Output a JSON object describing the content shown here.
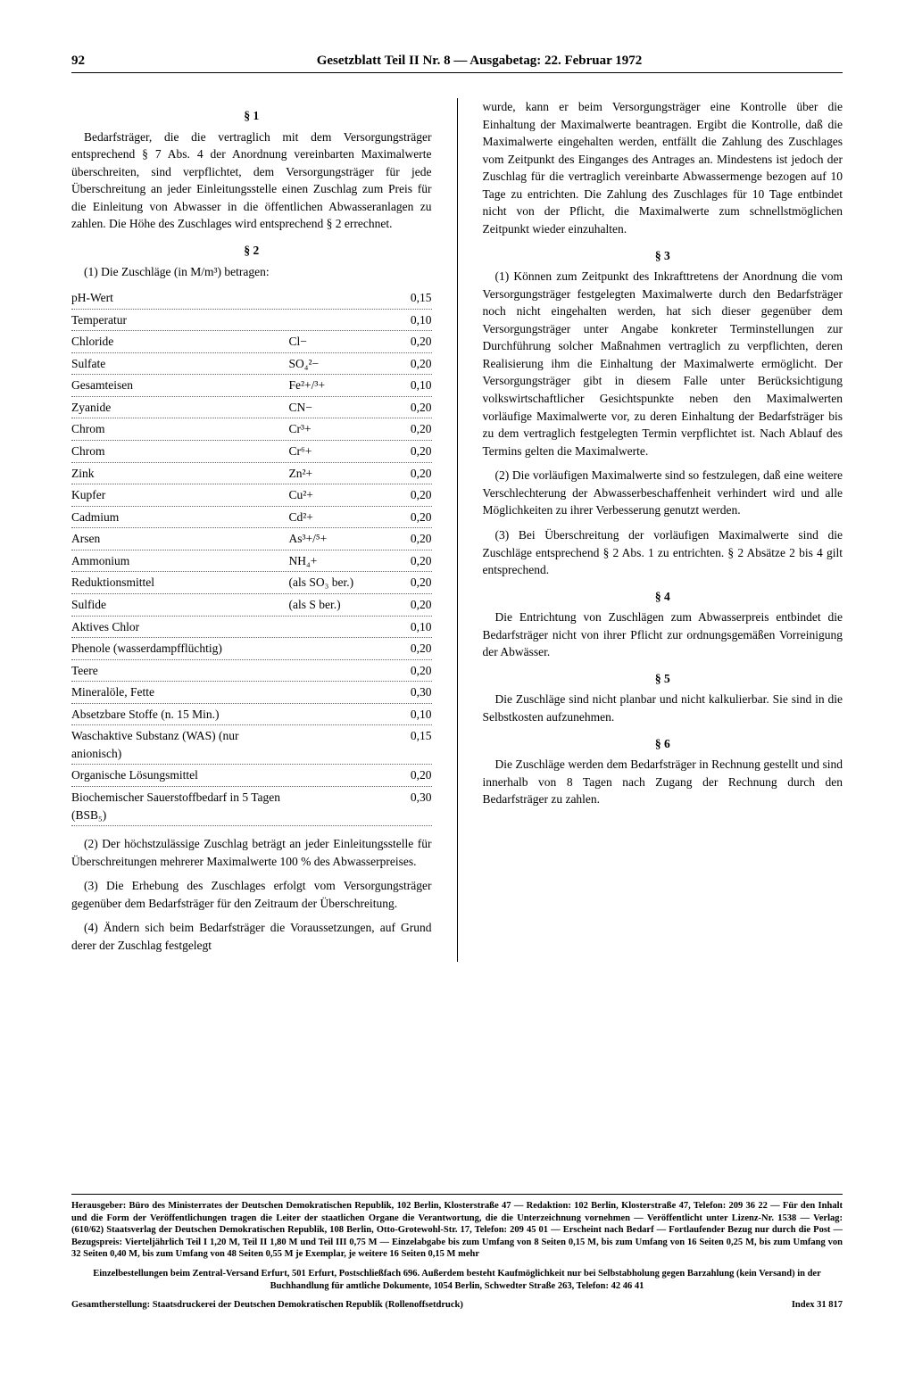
{
  "page_number": "92",
  "header": "Gesetzblatt Teil II Nr. 8 — Ausgabetag: 22. Februar 1972",
  "left": {
    "s1_heading": "§ 1",
    "s1_text": "Bedarfsträger, die die vertraglich mit dem Versorgungsträger entsprechend § 7 Abs. 4 der Anordnung vereinbarten Maximalwerte überschreiten, sind verpflichtet, dem Versorgungsträger für jede Überschreitung an jeder Einleitungsstelle einen Zuschlag zum Preis für die Einleitung von Abwasser in die öffentlichen Abwasseranlagen zu zahlen. Die Höhe des Zuschlages wird entsprechend § 2 errechnet.",
    "s2_heading": "§ 2",
    "s2_intro": "(1) Die Zuschläge (in M/m³) betragen:",
    "table": [
      {
        "name": "pH-Wert",
        "formula": "",
        "value": "0,15"
      },
      {
        "name": "Temperatur",
        "formula": "",
        "value": "0,10"
      },
      {
        "name": "Chloride",
        "formula": "Cl−",
        "value": "0,20"
      },
      {
        "name": "Sulfate",
        "formula": "SO₄²−",
        "value": "0,20"
      },
      {
        "name": "Gesamteisen",
        "formula": "Fe²+/³+",
        "value": "0,10"
      },
      {
        "name": "Zyanide",
        "formula": "CN−",
        "value": "0,20"
      },
      {
        "name": "Chrom",
        "formula": "Cr³+",
        "value": "0,20"
      },
      {
        "name": "Chrom",
        "formula": "Cr⁶+",
        "value": "0,20"
      },
      {
        "name": "Zink",
        "formula": "Zn²+",
        "value": "0,20"
      },
      {
        "name": "Kupfer",
        "formula": "Cu²+",
        "value": "0,20"
      },
      {
        "name": "Cadmium",
        "formula": "Cd²+",
        "value": "0,20"
      },
      {
        "name": "Arsen",
        "formula": "As³+/⁵+",
        "value": "0,20"
      },
      {
        "name": "Ammonium",
        "formula": "NH₄+",
        "value": "0,20"
      },
      {
        "name": "Reduktionsmittel",
        "formula": "(als SO₃ ber.)",
        "value": "0,20"
      },
      {
        "name": "Sulfide",
        "formula": "(als S ber.)",
        "value": "0,20"
      },
      {
        "name": "Aktives Chlor",
        "formula": "",
        "value": "0,10"
      },
      {
        "name": "Phenole (wasserdampfflüchtig)",
        "formula": "",
        "value": "0,20"
      },
      {
        "name": "Teere",
        "formula": "",
        "value": "0,20"
      },
      {
        "name": "Mineralöle, Fette",
        "formula": "",
        "value": "0,30"
      },
      {
        "name": "Absetzbare Stoffe (n. 15 Min.)",
        "formula": "",
        "value": "0,10"
      },
      {
        "name": "Waschaktive Substanz (WAS) (nur anionisch)",
        "formula": "",
        "value": "0,15"
      },
      {
        "name": "Organische Lösungsmittel",
        "formula": "",
        "value": "0,20"
      },
      {
        "name": "Biochemischer Sauerstoffbedarf in 5 Tagen (BSB₅)",
        "formula": "",
        "value": "0,30"
      }
    ],
    "s2_p2": "(2) Der höchstzulässige Zuschlag beträgt an jeder Einleitungsstelle für Überschreitungen mehrerer Maximalwerte 100 % des Abwasserpreises.",
    "s2_p3": "(3) Die Erhebung des Zuschlages erfolgt vom Versorgungsträger gegenüber dem Bedarfsträger für den Zeitraum der Überschreitung.",
    "s2_p4": "(4) Ändern sich beim Bedarfsträger die Voraussetzungen, auf Grund derer der Zuschlag festgelegt"
  },
  "right": {
    "cont": "wurde, kann er beim Versorgungsträger eine Kontrolle über die Einhaltung der Maximalwerte beantragen. Ergibt die Kontrolle, daß die Maximalwerte eingehalten werden, entfällt die Zahlung des Zuschlages vom Zeitpunkt des Einganges des Antrages an. Mindestens ist jedoch der Zuschlag für die vertraglich vereinbarte Abwassermenge bezogen auf 10 Tage zu entrichten. Die Zahlung des Zuschlages für 10 Tage entbindet nicht von der Pflicht, die Maximalwerte zum schnellstmöglichen Zeitpunkt wieder einzuhalten.",
    "s3_heading": "§ 3",
    "s3_p1": "(1) Können zum Zeitpunkt des Inkrafttretens der Anordnung die vom Versorgungsträger festgelegten Maximalwerte durch den Bedarfsträger noch nicht eingehalten werden, hat sich dieser gegenüber dem Versorgungsträger unter Angabe konkreter Terminstellungen zur Durchführung solcher Maßnahmen vertraglich zu verpflichten, deren Realisierung ihm die Einhaltung der Maximalwerte ermöglicht. Der Versorgungsträger gibt in diesem Falle unter Berücksichtigung volkswirtschaftlicher Gesichtspunkte neben den Maximalwerten vorläufige Maximalwerte vor, zu deren Einhaltung der Bedarfsträger bis zu dem vertraglich festgelegten Termin verpflichtet ist. Nach Ablauf des Termins gelten die Maximalwerte.",
    "s3_p2": "(2) Die vorläufigen Maximalwerte sind so festzulegen, daß eine weitere Verschlechterung der Abwasserbeschaffenheit verhindert wird und alle Möglichkeiten zu ihrer Verbesserung genutzt werden.",
    "s3_p3": "(3) Bei Überschreitung der vorläufigen Maximalwerte sind die Zuschläge entsprechend § 2 Abs. 1 zu entrichten. § 2 Absätze 2 bis 4 gilt entsprechend.",
    "s4_heading": "§ 4",
    "s4_text": "Die Entrichtung von Zuschlägen zum Abwasserpreis entbindet die Bedarfsträger nicht von ihrer Pflicht zur ordnungsgemäßen Vorreinigung der Abwässer.",
    "s5_heading": "§ 5",
    "s5_text": "Die Zuschläge sind nicht planbar und nicht kalkulierbar. Sie sind in die Selbstkosten aufzunehmen.",
    "s6_heading": "§ 6",
    "s6_text": "Die Zuschläge werden dem Bedarfsträger in Rechnung gestellt und sind innerhalb von 8 Tagen nach Zugang der Rechnung durch den Bedarfsträger zu zahlen."
  },
  "footer": {
    "block1": "Herausgeber: Büro des Ministerrates der Deutschen Demokratischen Republik, 102 Berlin, Klosterstraße 47 — Redaktion: 102 Berlin, Klosterstraße 47, Telefon: 209 36 22 — Für den Inhalt und die Form der Veröffentlichungen tragen die Leiter der staatlichen Organe die Verantwortung, die die Unterzeichnung vornehmen — Veröffentlicht unter Lizenz-Nr. 1538 — Verlag: (610/62) Staatsverlag der Deutschen Demokratischen Republik, 108 Berlin, Otto-Grotewohl-Str. 17, Telefon: 209 45 01 — Erscheint nach Bedarf — Fortlaufender Bezug nur durch die Post — Bezugspreis: Vierteljährlich Teil I 1,20 M, Teil II 1,80 M und Teil III 0,75 M — Einzelabgabe bis zum Umfang von 8 Seiten 0,15 M, bis zum Umfang von 16 Seiten 0,25 M, bis zum Umfang von 32 Seiten 0,40 M, bis zum Umfang von 48 Seiten 0,55 M je Exemplar, je weitere 16 Seiten 0,15 M mehr",
    "block2": "Einzelbestellungen beim Zentral-Versand Erfurt, 501 Erfurt, Postschließfach 696. Außerdem besteht Kaufmöglichkeit nur bei Selbstabholung gegen Barzahlung (kein Versand) in der Buchhandlung für amtliche Dokumente, 1054 Berlin, Schwedter Straße 263, Telefon: 42 46 41",
    "block3_left": "Gesamtherstellung: Staatsdruckerei der Deutschen Demokratischen Republik (Rollenoffsetdruck)",
    "block3_right": "Index 31 817"
  }
}
